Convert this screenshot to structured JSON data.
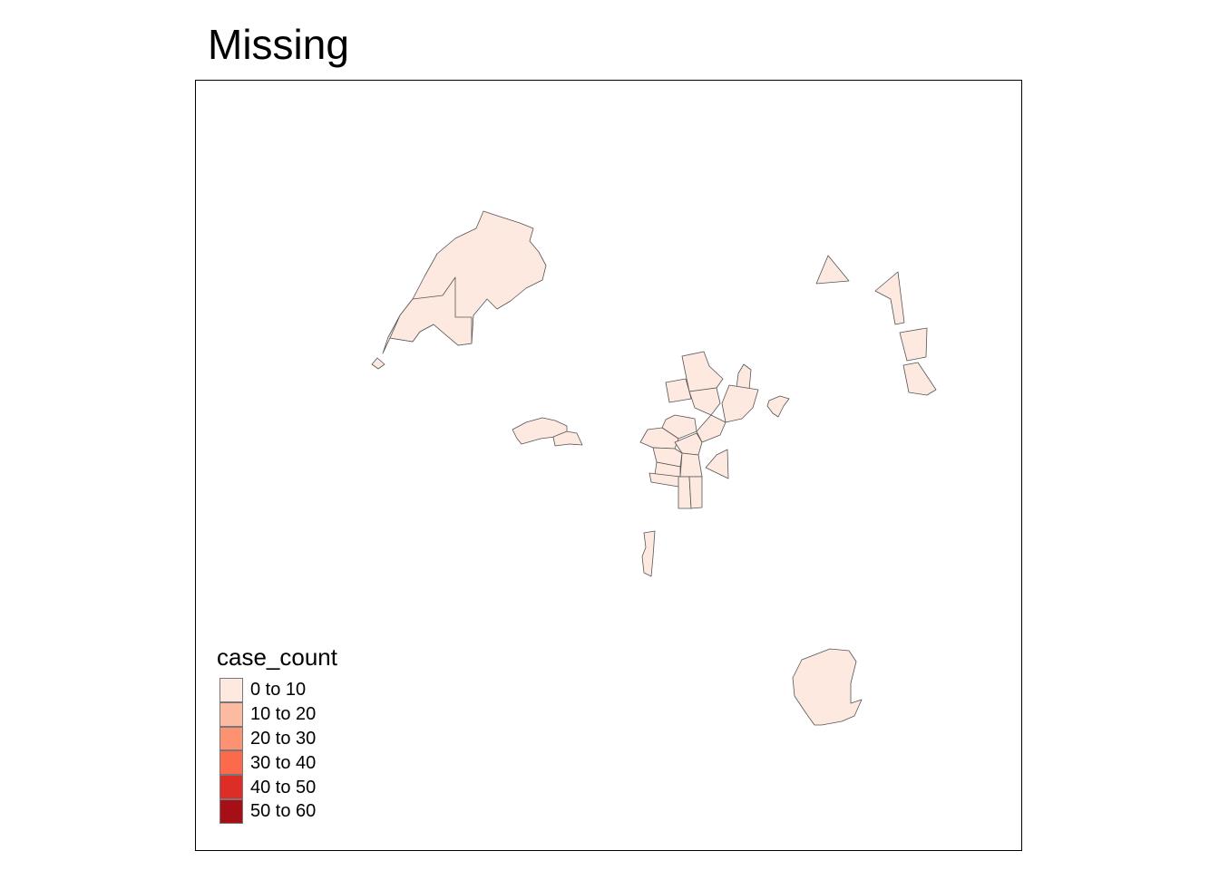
{
  "title": "Missing",
  "legend": {
    "title": "case_count",
    "items": [
      {
        "label": "0 to 10",
        "color": "#fee9e0"
      },
      {
        "label": "10 to 20",
        "color": "#fcbba1"
      },
      {
        "label": "20 to 30",
        "color": "#fc9272"
      },
      {
        "label": "30 to 40",
        "color": "#fb6a4a"
      },
      {
        "label": "40 to 50",
        "color": "#de2d26"
      },
      {
        "label": "50 to 60",
        "color": "#a50f15"
      }
    ]
  },
  "map": {
    "fill_color": "#fee9e0",
    "border_color": "#555555"
  }
}
